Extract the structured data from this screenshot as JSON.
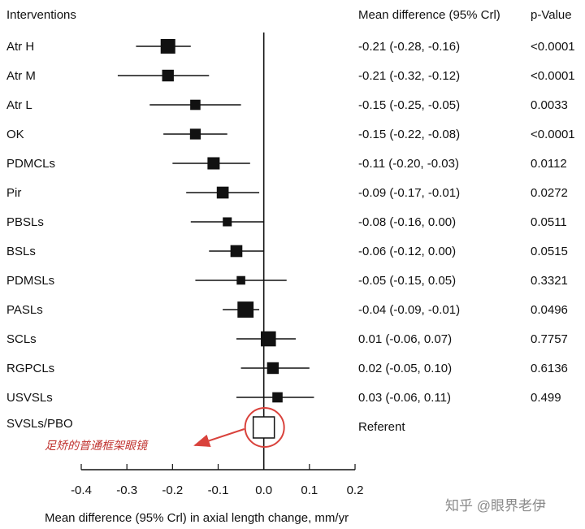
{
  "chart_data": {
    "type": "forest",
    "headers": {
      "interventions": "Interventions",
      "mean_difference": "Mean difference (95% Crl)",
      "p_value": "p-Value"
    },
    "xlabel": "Mean difference (95% Crl) in axial length change, mm/yr",
    "xlim": [
      -0.4,
      0.2
    ],
    "xticks": [
      "-0.4",
      "-0.3",
      "-0.2",
      "-0.1",
      "0.0",
      "0.1",
      "0.2"
    ],
    "xtick_values": [
      -0.4,
      -0.3,
      -0.2,
      -0.1,
      0.0,
      0.1,
      0.2
    ],
    "reference_line": 0,
    "rows": [
      {
        "label": "Atr H",
        "mean": -0.21,
        "lower": -0.28,
        "upper": -0.16,
        "weight": 1.0,
        "ci_text": "-0.21 (-0.28, -0.16)",
        "p": "<0.0001"
      },
      {
        "label": "Atr M",
        "mean": -0.21,
        "lower": -0.32,
        "upper": -0.12,
        "weight": 0.7,
        "ci_text": "-0.21 (-0.32, -0.12)",
        "p": "<0.0001"
      },
      {
        "label": "Atr L",
        "mean": -0.15,
        "lower": -0.25,
        "upper": -0.05,
        "weight": 0.55,
        "ci_text": "-0.15 (-0.25, -0.05)",
        "p": "0.0033"
      },
      {
        "label": "OK",
        "mean": -0.15,
        "lower": -0.22,
        "upper": -0.08,
        "weight": 0.6,
        "ci_text": "-0.15 (-0.22, -0.08)",
        "p": "<0.0001"
      },
      {
        "label": "PDMCLs",
        "mean": -0.11,
        "lower": -0.2,
        "upper": -0.03,
        "weight": 0.75,
        "ci_text": "-0.11 (-0.20, -0.03)",
        "p": "0.0112"
      },
      {
        "label": "Pir",
        "mean": -0.09,
        "lower": -0.17,
        "upper": -0.01,
        "weight": 0.72,
        "ci_text": "-0.09 (-0.17, -0.01)",
        "p": "0.0272"
      },
      {
        "label": "PBSLs",
        "mean": -0.08,
        "lower": -0.16,
        "upper": 0.0,
        "weight": 0.42,
        "ci_text": "-0.08 (-0.16, 0.00)",
        "p": "0.0511"
      },
      {
        "label": "BSLs",
        "mean": -0.06,
        "lower": -0.12,
        "upper": 0.0,
        "weight": 0.72,
        "ci_text": "-0.06 (-0.12, 0.00)",
        "p": "0.0515"
      },
      {
        "label": "PDMSLs",
        "mean": -0.05,
        "lower": -0.15,
        "upper": 0.05,
        "weight": 0.38,
        "ci_text": "-0.05 (-0.15, 0.05)",
        "p": "0.3321"
      },
      {
        "label": "PASLs",
        "mean": -0.04,
        "lower": -0.09,
        "upper": -0.01,
        "weight": 1.15,
        "ci_text": "-0.04 (-0.09, -0.01)",
        "p": "0.0496"
      },
      {
        "label": "SCLs",
        "mean": 0.01,
        "lower": -0.06,
        "upper": 0.07,
        "weight": 1.05,
        "ci_text": "0.01 (-0.06, 0.07)",
        "p": "0.7757"
      },
      {
        "label": "RGPCLs",
        "mean": 0.02,
        "lower": -0.05,
        "upper": 0.1,
        "weight": 0.7,
        "ci_text": "0.02 (-0.05, 0.10)",
        "p": "0.6136"
      },
      {
        "label": "USVSLs",
        "mean": 0.03,
        "lower": -0.06,
        "upper": 0.11,
        "weight": 0.55,
        "ci_text": "0.03 (-0.06, 0.11)",
        "p": "0.499"
      }
    ],
    "referent": {
      "label": "SVSLs/PBO",
      "mean": 0.0,
      "ci_text": "Referent"
    },
    "annotation": {
      "text": "足矫的普通框架眼镜",
      "color": "#c0332f"
    },
    "marker_color": "#111111",
    "highlight_color": "#d9423c"
  },
  "watermark": "知乎 @眼界老伊"
}
